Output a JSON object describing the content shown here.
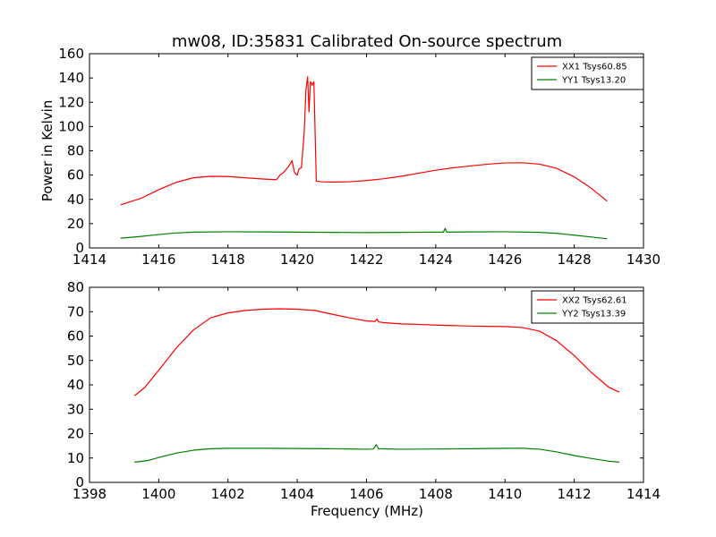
{
  "chart_data": [
    {
      "type": "line",
      "title": "mw08, ID:35831 Calibrated On-source spectrum",
      "xlabel": "",
      "ylabel": "Power in Kelvin",
      "xlim": [
        1414,
        1430
      ],
      "ylim": [
        0,
        160
      ],
      "xticks": [
        "1414",
        "1416",
        "1418",
        "1420",
        "1422",
        "1424",
        "1426",
        "1428",
        "1430"
      ],
      "yticks": [
        "0",
        "20",
        "40",
        "60",
        "80",
        "100",
        "120",
        "140",
        "160"
      ],
      "legend": "top-right",
      "series": [
        {
          "name": "XX1 Tsys60.85",
          "color": "#ff0000",
          "points": [
            [
              1414.9,
              35.5
            ],
            [
              1415.5,
              41
            ],
            [
              1416,
              48
            ],
            [
              1416.5,
              54
            ],
            [
              1417,
              57.8
            ],
            [
              1417.5,
              59
            ],
            [
              1418,
              58.8
            ],
            [
              1418.5,
              57.8
            ],
            [
              1419,
              56.8
            ],
            [
              1419.4,
              56.2
            ],
            [
              1419.5,
              60
            ],
            [
              1419.6,
              62
            ],
            [
              1419.75,
              67
            ],
            [
              1419.85,
              72
            ],
            [
              1419.92,
              62
            ],
            [
              1420.0,
              60
            ],
            [
              1420.05,
              65
            ],
            [
              1420.12,
              66
            ],
            [
              1420.2,
              95
            ],
            [
              1420.25,
              130
            ],
            [
              1420.3,
              141
            ],
            [
              1420.34,
              112
            ],
            [
              1420.38,
              137
            ],
            [
              1420.43,
              134
            ],
            [
              1420.48,
              137
            ],
            [
              1420.55,
              55
            ],
            [
              1420.7,
              54.5
            ],
            [
              1421,
              54.2
            ],
            [
              1421.5,
              54.5
            ],
            [
              1422,
              55.5
            ],
            [
              1422.5,
              57
            ],
            [
              1423,
              59
            ],
            [
              1423.5,
              61.5
            ],
            [
              1424,
              64
            ],
            [
              1424.5,
              66
            ],
            [
              1425,
              67.5
            ],
            [
              1425.5,
              69
            ],
            [
              1426,
              70
            ],
            [
              1426.5,
              70.2
            ],
            [
              1427,
              69
            ],
            [
              1427.5,
              65.5
            ],
            [
              1428,
              58.5
            ],
            [
              1428.5,
              49
            ],
            [
              1428.95,
              38.5
            ]
          ]
        },
        {
          "name": "YY1 Tsys13.20",
          "color": "#008000",
          "points": [
            [
              1414.9,
              8
            ],
            [
              1415.5,
              9.5
            ],
            [
              1416,
              11
            ],
            [
              1416.5,
              12.3
            ],
            [
              1417,
              13
            ],
            [
              1418,
              13.3
            ],
            [
              1419,
              13.2
            ],
            [
              1420,
              13
            ],
            [
              1421,
              12.8
            ],
            [
              1422,
              12.6
            ],
            [
              1423,
              12.8
            ],
            [
              1424,
              13
            ],
            [
              1424.22,
              13
            ],
            [
              1424.27,
              16
            ],
            [
              1424.32,
              13
            ],
            [
              1425,
              13.2
            ],
            [
              1426,
              13.3
            ],
            [
              1427,
              12.8
            ],
            [
              1427.5,
              12
            ],
            [
              1428,
              10.5
            ],
            [
              1428.5,
              9
            ],
            [
              1428.95,
              7.5
            ]
          ]
        }
      ]
    },
    {
      "type": "line",
      "title": "",
      "xlabel": "Frequency (MHz)",
      "ylabel": "",
      "xlim": [
        1398,
        1414
      ],
      "ylim": [
        0,
        80
      ],
      "xticks": [
        "1398",
        "1400",
        "1402",
        "1404",
        "1406",
        "1408",
        "1410",
        "1412",
        "1414"
      ],
      "yticks": [
        "0",
        "10",
        "20",
        "30",
        "40",
        "50",
        "60",
        "70",
        "80"
      ],
      "legend": "top-right",
      "series": [
        {
          "name": "XX2 Tsys62.61",
          "color": "#ff0000",
          "points": [
            [
              1399.3,
              35.5
            ],
            [
              1399.6,
              39
            ],
            [
              1400,
              46
            ],
            [
              1400.5,
              55
            ],
            [
              1401,
              62.5
            ],
            [
              1401.5,
              67.5
            ],
            [
              1402,
              69.5
            ],
            [
              1402.5,
              70.5
            ],
            [
              1403,
              71
            ],
            [
              1403.5,
              71.2
            ],
            [
              1404,
              71
            ],
            [
              1404.5,
              70.5
            ],
            [
              1405,
              69
            ],
            [
              1405.5,
              67.5
            ],
            [
              1406,
              66.2
            ],
            [
              1406.25,
              66
            ],
            [
              1406.3,
              67
            ],
            [
              1406.35,
              65.8
            ],
            [
              1406.5,
              65.5
            ],
            [
              1407,
              65
            ],
            [
              1407.5,
              64.8
            ],
            [
              1408,
              64.5
            ],
            [
              1408.5,
              64.3
            ],
            [
              1409,
              64.1
            ],
            [
              1409.5,
              64
            ],
            [
              1410,
              63.9
            ],
            [
              1410.5,
              63.5
            ],
            [
              1411,
              62
            ],
            [
              1411.5,
              58
            ],
            [
              1412,
              52
            ],
            [
              1412.5,
              45
            ],
            [
              1413,
              39
            ],
            [
              1413.3,
              37
            ]
          ]
        },
        {
          "name": "YY2 Tsys13.39",
          "color": "#008000",
          "points": [
            [
              1399.3,
              8.3
            ],
            [
              1399.7,
              9
            ],
            [
              1400,
              10.2
            ],
            [
              1400.5,
              12
            ],
            [
              1401,
              13.2
            ],
            [
              1401.5,
              13.8
            ],
            [
              1402,
              14
            ],
            [
              1403,
              14
            ],
            [
              1404,
              13.9
            ],
            [
              1405,
              13.8
            ],
            [
              1406,
              13.6
            ],
            [
              1406.2,
              13.7
            ],
            [
              1406.28,
              15.5
            ],
            [
              1406.35,
              13.8
            ],
            [
              1407,
              13.6
            ],
            [
              1408,
              13.7
            ],
            [
              1409,
              13.8
            ],
            [
              1410,
              14
            ],
            [
              1410.5,
              14
            ],
            [
              1411,
              13.6
            ],
            [
              1411.5,
              12.5
            ],
            [
              1412,
              11
            ],
            [
              1412.5,
              9.8
            ],
            [
              1413,
              8.7
            ],
            [
              1413.3,
              8.3
            ]
          ]
        }
      ]
    }
  ]
}
